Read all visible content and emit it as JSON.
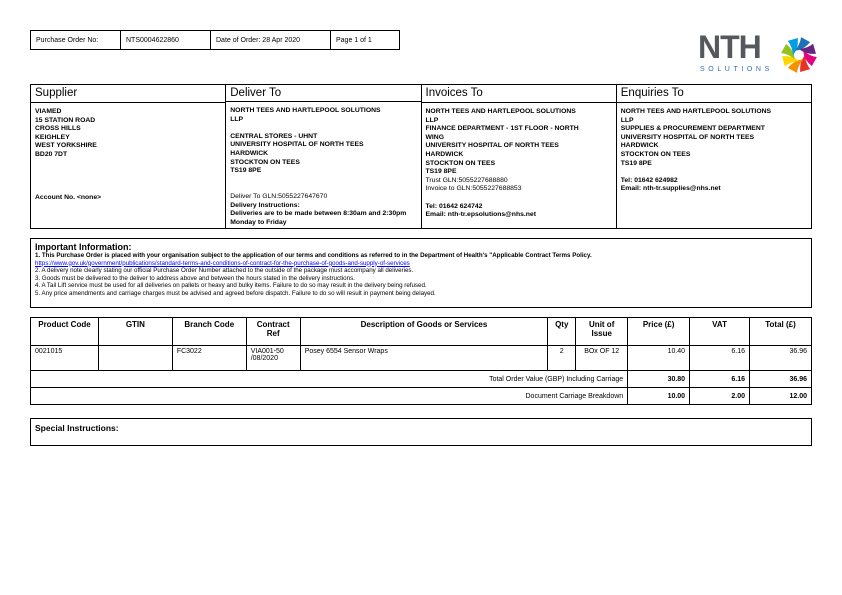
{
  "header": {
    "po_label": "Purchase Order No:",
    "po_number": "NTS0004622860",
    "date": "Date of Order: 28 Apr 2020",
    "page": "Page 1 of 1"
  },
  "logo": {
    "text": "NTH",
    "subtext": "SOLUTIONS",
    "colors": [
      "#e6332a",
      "#f39200",
      "#ffd500",
      "#95c11f",
      "#009fe3",
      "#1d71b8",
      "#662483",
      "#e5007e"
    ]
  },
  "addresses": [
    {
      "title": "Supplier",
      "lines": [
        "VIAMED",
        "15 STATION ROAD",
        "CROSS HILLS",
        "KEIGHLEY",
        "WEST YORKSHIRE",
        "BD20 7DT"
      ],
      "extra": [
        "Account No.   <none>"
      ]
    },
    {
      "title": "Deliver To",
      "lines": [
        "NORTH TEES AND HARTLEPOOL SOLUTIONS",
        "LLP",
        "",
        "CENTRAL STORES - UHNT",
        "UNIVERSITY HOSPITAL OF NORTH TEES",
        "HARDWICK",
        "STOCKTON ON TEES",
        "TS19 8PE"
      ],
      "extra": [
        "Deliver To GLN:5055227647670",
        "Delivery Instructions:",
        "Deliveries are to be made between 8:30am and 2:30pm Monday to Friday"
      ]
    },
    {
      "title": "Invoices To",
      "lines": [
        "NORTH TEES AND HARTLEPOOL SOLUTIONS",
        "LLP",
        "FINANCE DEPARTMENT - 1ST FLOOR - NORTH",
        "WING",
        "UNIVERSITY HOSPITAL OF NORTH TEES",
        "HARDWICK",
        "STOCKTON ON TEES",
        "TS19 8PE",
        "Trust GLN:5055227688880",
        "Invoice to GLN:5055227688853"
      ],
      "extra": [
        "Tel: 01642 624742",
        "Email: nth-tr.epsolutions@nhs.net"
      ]
    },
    {
      "title": "Enquiries To",
      "lines": [
        "NORTH TEES AND HARTLEPOOL SOLUTIONS",
        "LLP",
        "SUPPLIES & PROCUREMENT DEPARTMENT",
        "UNIVERSITY HOSPITAL OF NORTH TEES",
        "HARDWICK",
        "STOCKTON ON TEES",
        "TS19 8PE"
      ],
      "extra": [
        "Tel: 01642 624982",
        "Email: nth-tr.supplies@nhs.net"
      ]
    }
  ],
  "info": {
    "title": "Important Information:",
    "item1": "1.  This Purchase Order is placed with your organisation subject to the application of our terms and conditions as referred to in the Department of Health's \"Applicable Contract Terms Policy.",
    "link": "https://www.gov.uk/government/publications/standard-terms-and-conditions-of-contract-for-the-purchase-of-goods-and-supply-of-services",
    "item2": "2. A delivery note clearly stating our official Purchase Order Number attached to the outside of the package must accompany all deliveries.",
    "item3": "3. Goods must be delivered to the deliver to address above and between the hours stated in the delivery instructions.",
    "item4": "4. A Tail Lift service must be used for all deliveries on pallets or heavy and bulky items.  Failure to do so may result in the delivery being refused.",
    "item5": "5. Any price amendments and carriage charges must be advised and agreed before dispatch.  Failure to do so will result in payment being delayed."
  },
  "items": {
    "columns": [
      "Product Code",
      "GTIN",
      "Branch Code",
      "Contract Ref",
      "Description of Goods or Services",
      "Qty",
      "Unit of Issue",
      "Price (£)",
      "VAT",
      "Total (£)"
    ],
    "rows": [
      {
        "product_code": "0021015",
        "gtin": "",
        "branch_code": "FC3022",
        "contract_ref": "VIA001-50 /08/2020",
        "description": "Posey 6554 Sensor Wraps",
        "qty": "2",
        "unit": "BOx OF 12",
        "price": "10.40",
        "vat": "6.16",
        "total": "36.96"
      }
    ],
    "total_label": "Total Order Value (GBP) Including Carriage",
    "total_net": "30.80",
    "total_vat": "6.16",
    "total_gross": "36.96",
    "carriage_label": "Document Carriage Breakdown",
    "carriage_net": "10.00",
    "carriage_vat": "2.00",
    "carriage_gross": "12.00"
  },
  "special": {
    "title": "Special Instructions:"
  }
}
